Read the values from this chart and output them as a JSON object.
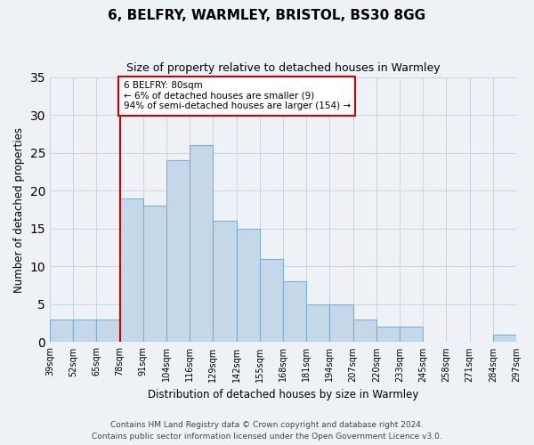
{
  "title": "6, BELFRY, WARMLEY, BRISTOL, BS30 8GG",
  "subtitle": "Size of property relative to detached houses in Warmley",
  "xlabel": "Distribution of detached houses by size in Warmley",
  "ylabel": "Number of detached properties",
  "bin_labels": [
    "39sqm",
    "52sqm",
    "65sqm",
    "78sqm",
    "91sqm",
    "104sqm",
    "116sqm",
    "129sqm",
    "142sqm",
    "155sqm",
    "168sqm",
    "181sqm",
    "194sqm",
    "207sqm",
    "220sqm",
    "233sqm",
    "245sqm",
    "258sqm",
    "271sqm",
    "284sqm",
    "297sqm"
  ],
  "bar_heights": [
    3,
    3,
    3,
    19,
    18,
    24,
    26,
    16,
    15,
    11,
    8,
    5,
    5,
    3,
    2,
    2,
    0,
    0,
    0,
    1
  ],
  "bar_color": "#c5d8ea",
  "bar_edgecolor": "#7bafd4",
  "marker_bin_index": 3,
  "marker_color": "#cc0000",
  "annotation_text": "6 BELFRY: 80sqm\n← 6% of detached houses are smaller (9)\n94% of semi-detached houses are larger (154) →",
  "annotation_box_edgecolor": "#cc0000",
  "ylim": [
    0,
    35
  ],
  "yticks": [
    0,
    5,
    10,
    15,
    20,
    25,
    30,
    35
  ],
  "footer_line1": "Contains HM Land Registry data © Crown copyright and database right 2024.",
  "footer_line2": "Contains public sector information licensed under the Open Government Licence v3.0.",
  "bg_color": "#eef2f7",
  "plot_bg_color": "#eef2f7",
  "grid_color": "#c8d4e0"
}
